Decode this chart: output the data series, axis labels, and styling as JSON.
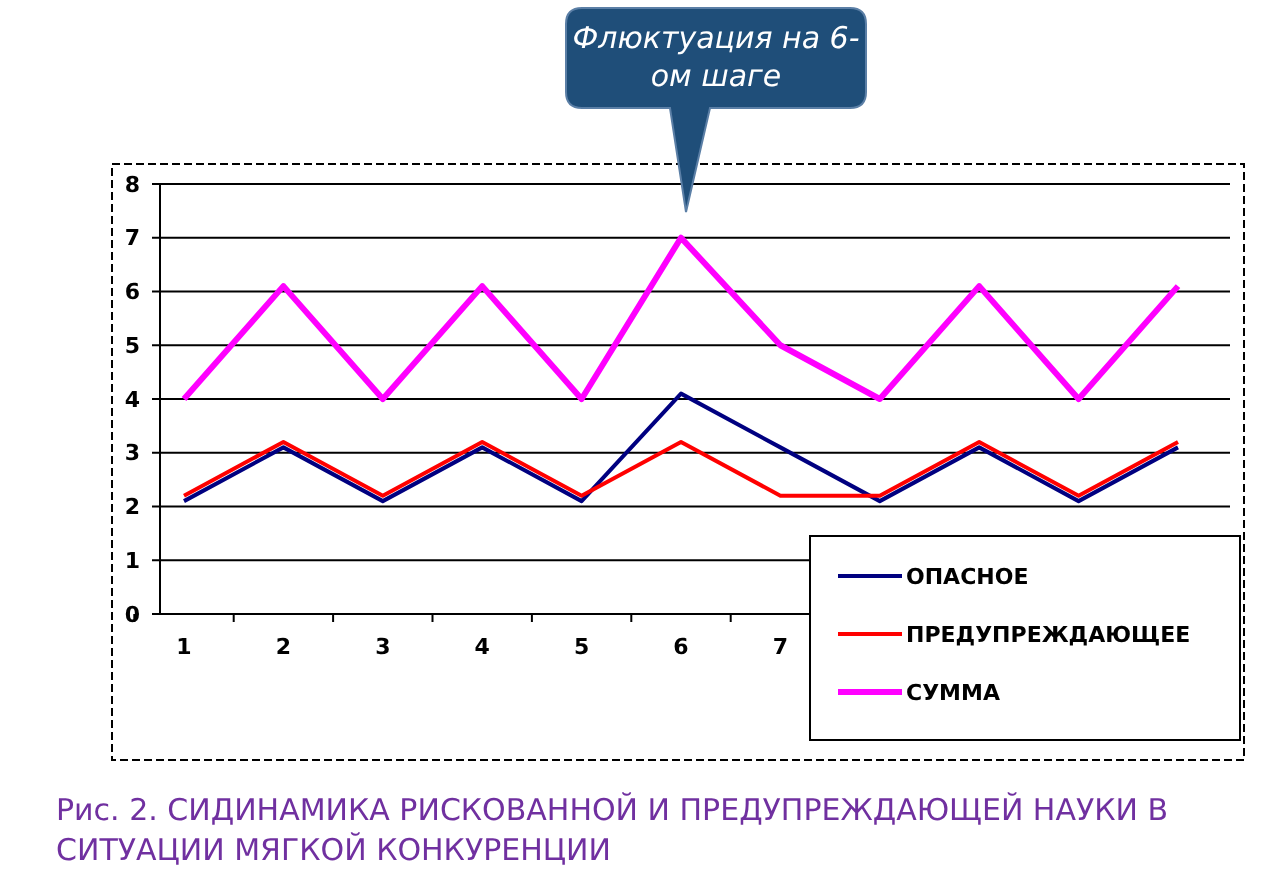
{
  "chart_data": {
    "type": "line",
    "categories": [
      "1",
      "2",
      "3",
      "4",
      "5",
      "6",
      "7",
      null,
      null,
      null,
      null
    ],
    "series": [
      {
        "name": "ОПАСНОЕ",
        "color": "#000080",
        "values": [
          2.1,
          3.1,
          2.1,
          3.1,
          2.1,
          4.1,
          3.1,
          2.1,
          3.1,
          2.1,
          3.1
        ]
      },
      {
        "name": "ПРЕДУПРЕЖДАЮЩЕЕ",
        "color": "#ff0000",
        "values": [
          2.2,
          3.2,
          2.2,
          3.2,
          2.2,
          3.2,
          2.2,
          2.2,
          3.2,
          2.2,
          3.2
        ]
      },
      {
        "name": "СУММА",
        "color": "#ff00ff",
        "values": [
          4,
          6.1,
          4,
          6.1,
          4,
          7,
          5,
          4,
          6.1,
          4,
          6.1
        ]
      }
    ],
    "ylim": [
      0,
      8
    ],
    "yticks": [
      0,
      1,
      2,
      3,
      4,
      5,
      6,
      7,
      8
    ],
    "grid": "y",
    "legend": "bottom right",
    "marker": "none",
    "annotations": [
      "Флюктуация на 6-ом шаге",
      "Рис. 2. СИДИНАМИКА РИСКОВАННОЙ И ПРЕДУПРЕЖДАЮЩЕЙ НАУКИ В СИТУАЦИИ МЯГКОЙ КОНКУРЕНЦИИ"
    ]
  }
}
